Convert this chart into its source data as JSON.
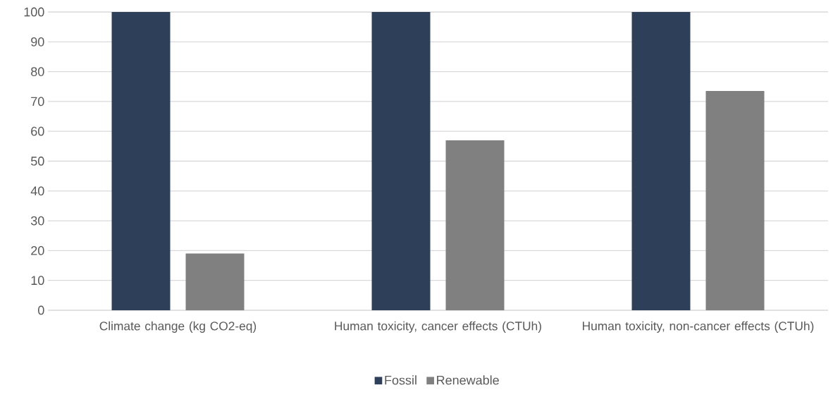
{
  "chart_data": {
    "type": "bar",
    "categories": [
      "Climate change (kg CO2-eq)",
      "Human toxicity, cancer effects (CTUh)",
      "Human toxicity, non-cancer effects (CTUh)"
    ],
    "series": [
      {
        "name": "Fossil",
        "color": "#2e4059",
        "values": [
          100,
          100,
          100
        ]
      },
      {
        "name": "Renewable",
        "color": "#808080",
        "values": [
          19,
          57,
          73.5
        ]
      }
    ],
    "ylim": [
      0,
      100
    ],
    "yticks": [
      0,
      10,
      20,
      30,
      40,
      50,
      60,
      70,
      80,
      90,
      100
    ],
    "grid": "y",
    "legend": "bottom"
  }
}
